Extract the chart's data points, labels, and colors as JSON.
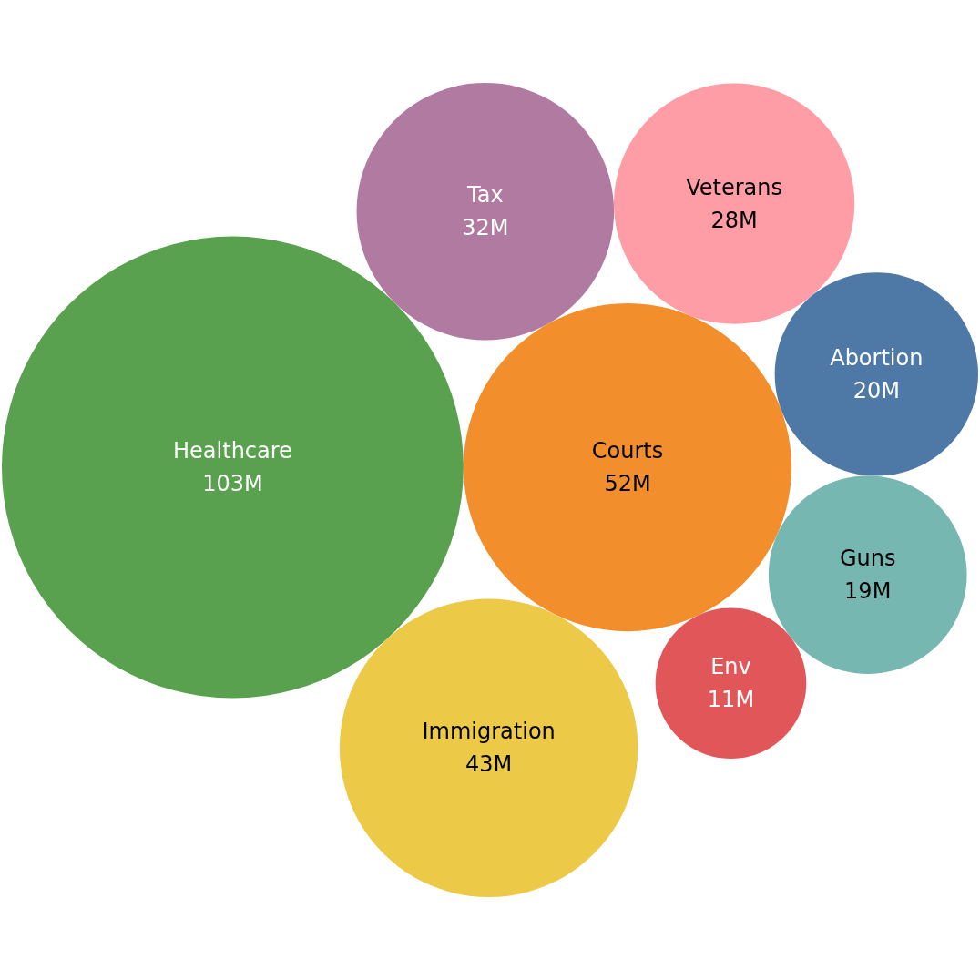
{
  "chart_data": {
    "type": "other",
    "categories": [
      "Healthcare",
      "Courts",
      "Immigration",
      "Tax",
      "Veterans",
      "Abortion",
      "Guns",
      "Env"
    ],
    "values": [
      103,
      52,
      43,
      32,
      28,
      20,
      19,
      11
    ],
    "value_labels": [
      "103M",
      "52M",
      "43M",
      "32M",
      "28M",
      "20M",
      "19M",
      "11M"
    ],
    "colors": [
      "#59a14f",
      "#f28e2b",
      "#edc948",
      "#b07aa1",
      "#ff9da7",
      "#4e79a7",
      "#76b7b2",
      "#e15759"
    ]
  }
}
